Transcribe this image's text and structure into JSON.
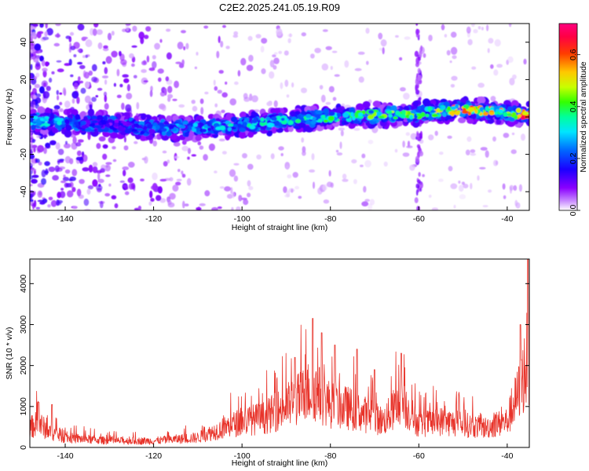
{
  "title": "C2E2.2025.241.05.19.R09",
  "colors": {
    "snr_line": "#e8332a",
    "frame": "#000000"
  },
  "chart_data": [
    {
      "type": "heatmap",
      "xlabel": "Height of straight line (km)",
      "ylabel": "Frequency (Hz)",
      "colorbar_label": "Normalized spectral amplitude",
      "xlim": [
        -148,
        -35
      ],
      "ylim": [
        -50,
        50
      ],
      "clim": [
        0.0,
        0.72
      ],
      "x_ticks": [
        -140,
        -120,
        -100,
        -80,
        -60,
        -40
      ],
      "x_tick_labels": [
        "-140",
        "-120",
        "-100",
        "-80",
        "-60",
        "-40"
      ],
      "y_ticks": [
        -40,
        -20,
        0,
        20,
        40
      ],
      "y_tick_labels": [
        "-40",
        "-20",
        "0",
        "20",
        "40"
      ],
      "colorbar_ticks": [
        0.0,
        0.2,
        0.4,
        0.6
      ],
      "colorbar_tick_labels": [
        "0.0",
        "0.2",
        "0.4",
        "0.6"
      ],
      "ridge": {
        "description_points": [
          {
            "x": -148,
            "freq": -2,
            "amp": 0.35
          },
          {
            "x": -140,
            "freq": -3,
            "amp": 0.3
          },
          {
            "x": -130,
            "freq": -4,
            "amp": 0.15
          },
          {
            "x": -120,
            "freq": -6,
            "amp": 0.25
          },
          {
            "x": -110,
            "freq": -6,
            "amp": 0.3
          },
          {
            "x": -100,
            "freq": -4,
            "amp": 0.35
          },
          {
            "x": -90,
            "freq": -2,
            "amp": 0.35
          },
          {
            "x": -80,
            "freq": 0,
            "amp": 0.4
          },
          {
            "x": -70,
            "freq": 1,
            "amp": 0.45
          },
          {
            "x": -60,
            "freq": 2,
            "amp": 0.45
          },
          {
            "x": -50,
            "freq": 4,
            "amp": 0.6
          },
          {
            "x": -42,
            "freq": 3,
            "amp": 0.55
          },
          {
            "x": -36,
            "freq": 1,
            "amp": 0.7
          }
        ]
      }
    },
    {
      "type": "line",
      "xlabel": "Height of straight line (km)",
      "ylabel": "SNR (10 * v/v)",
      "xlim": [
        -148,
        -35
      ],
      "ylim": [
        0,
        4600
      ],
      "x_ticks": [
        -140,
        -120,
        -100,
        -80,
        -60,
        -40
      ],
      "x_tick_labels": [
        "-140",
        "-120",
        "-100",
        "-80",
        "-60",
        "-40"
      ],
      "y_ticks": [
        0,
        1000,
        2000,
        3000,
        4000
      ],
      "y_tick_labels": [
        "0",
        "1000",
        "2000",
        "3000",
        "4000"
      ],
      "envelope": [
        {
          "x": -148,
          "y": 600
        },
        {
          "x": -146,
          "y": 750
        },
        {
          "x": -144,
          "y": 500
        },
        {
          "x": -140,
          "y": 300
        },
        {
          "x": -130,
          "y": 200
        },
        {
          "x": -120,
          "y": 200
        },
        {
          "x": -110,
          "y": 300
        },
        {
          "x": -106,
          "y": 500
        },
        {
          "x": -100,
          "y": 800
        },
        {
          "x": -95,
          "y": 900
        },
        {
          "x": -88,
          "y": 1400
        },
        {
          "x": -84,
          "y": 1800
        },
        {
          "x": -80,
          "y": 1300
        },
        {
          "x": -76,
          "y": 1200
        },
        {
          "x": -72,
          "y": 1000
        },
        {
          "x": -68,
          "y": 800
        },
        {
          "x": -64,
          "y": 1400
        },
        {
          "x": -60,
          "y": 700
        },
        {
          "x": -55,
          "y": 800
        },
        {
          "x": -50,
          "y": 700
        },
        {
          "x": -45,
          "y": 600
        },
        {
          "x": -40,
          "y": 800
        },
        {
          "x": -37,
          "y": 1800
        },
        {
          "x": -35,
          "y": 3000
        }
      ],
      "peaks": [
        {
          "x": -146,
          "y": 1100
        },
        {
          "x": -143,
          "y": 1050
        },
        {
          "x": -84,
          "y": 3150
        },
        {
          "x": -82,
          "y": 2800
        },
        {
          "x": -88,
          "y": 2200
        },
        {
          "x": -79,
          "y": 2500
        },
        {
          "x": -74,
          "y": 2400
        },
        {
          "x": -64,
          "y": 2300
        },
        {
          "x": -70,
          "y": 1900
        },
        {
          "x": -37,
          "y": 3000
        },
        {
          "x": -35.3,
          "y": 4600
        }
      ]
    }
  ]
}
